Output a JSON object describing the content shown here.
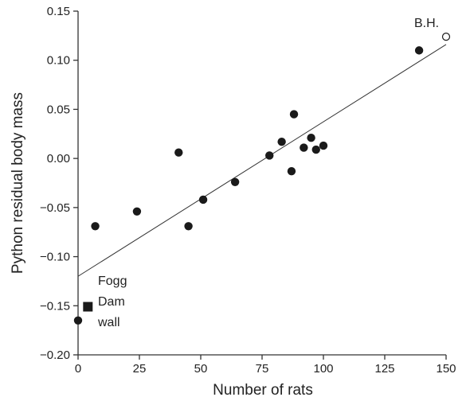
{
  "chart_data": {
    "type": "scatter",
    "title": "",
    "xlabel": "Number of rats",
    "ylabel": "Python residual body mass",
    "xlim": [
      0,
      150
    ],
    "ylim": [
      -0.2,
      0.15
    ],
    "x_ticks": [
      "0",
      "25",
      "50",
      "75",
      "100",
      "125",
      "150"
    ],
    "y_ticks": [
      "0.15",
      "0.10",
      "0.05",
      "0.00",
      "−0.05",
      "−0.10",
      "−0.15",
      "−0.20"
    ],
    "grid": false,
    "points": [
      {
        "x": 0,
        "y": -0.165,
        "marker": "filled-circle"
      },
      {
        "x": 7,
        "y": -0.069,
        "marker": "filled-circle"
      },
      {
        "x": 24,
        "y": -0.054,
        "marker": "filled-circle"
      },
      {
        "x": 41,
        "y": 0.006,
        "marker": "filled-circle"
      },
      {
        "x": 45,
        "y": -0.069,
        "marker": "filled-circle"
      },
      {
        "x": 51,
        "y": -0.042,
        "marker": "filled-circle"
      },
      {
        "x": 64,
        "y": -0.024,
        "marker": "filled-circle"
      },
      {
        "x": 78,
        "y": 0.003,
        "marker": "filled-circle"
      },
      {
        "x": 83,
        "y": 0.017,
        "marker": "filled-circle"
      },
      {
        "x": 87,
        "y": -0.013,
        "marker": "filled-circle"
      },
      {
        "x": 88,
        "y": 0.045,
        "marker": "filled-circle"
      },
      {
        "x": 92,
        "y": 0.011,
        "marker": "filled-circle"
      },
      {
        "x": 95,
        "y": 0.021,
        "marker": "filled-circle"
      },
      {
        "x": 97,
        "y": 0.009,
        "marker": "filled-circle"
      },
      {
        "x": 100,
        "y": 0.013,
        "marker": "filled-circle"
      },
      {
        "x": 139,
        "y": 0.11,
        "marker": "filled-circle"
      },
      {
        "x": 150,
        "y": 0.124,
        "marker": "open-circle",
        "label": "B.H."
      },
      {
        "x": 4,
        "y": -0.151,
        "marker": "filled-square",
        "label": "Fogg Dam wall"
      }
    ],
    "regression_line": {
      "x": [
        0,
        150
      ],
      "y": [
        -0.12,
        0.116
      ]
    },
    "annotations": {
      "bh": "B.H.",
      "fogg_lines": [
        "Fogg",
        "Dam",
        "wall"
      ]
    },
    "colors": {
      "marker": "#1a1a1a",
      "axis": "#333333",
      "line": "#333333",
      "open_marker_fill": "#ffffff"
    }
  }
}
